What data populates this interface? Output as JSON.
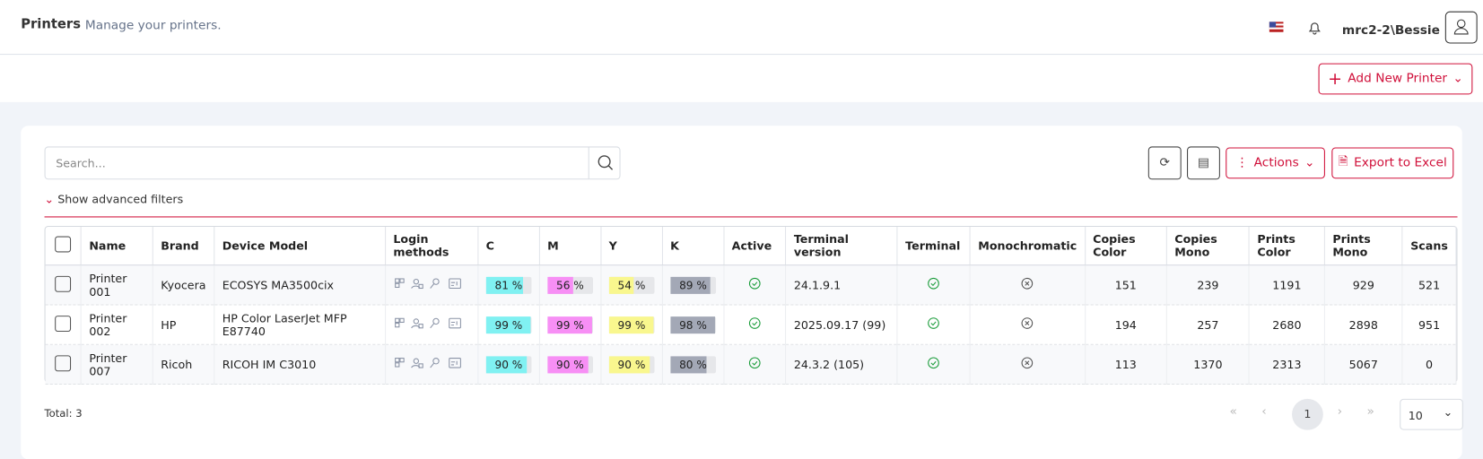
{
  "header": {
    "title": "Printers",
    "subtitle": "Manage your printers.",
    "user": "mrc2-2\\Bessie"
  },
  "toolbar": {
    "add_button": "Add New Printer",
    "search_placeholder": "Search...",
    "actions": "Actions",
    "export": "Export to Excel",
    "advanced_filters": "Show advanced filters"
  },
  "table": {
    "columns": [
      "Name",
      "Brand",
      "Device Model",
      "Login methods",
      "C",
      "M",
      "Y",
      "K",
      "Active",
      "Terminal version",
      "Terminal",
      "Monochromatic",
      "Copies Color",
      "Copies Mono",
      "Prints Color",
      "Prints Mono",
      "Scans"
    ],
    "toner_colors": {
      "c": "#80f1f2",
      "m": "#f78ff5",
      "y": "#f9f78e",
      "k": "#a3a8b6"
    },
    "rows": [
      {
        "name": "Printer 001",
        "brand": "Kyocera",
        "model": "ECOSYS MA3500cix",
        "c": {
          "value": 81,
          "label": "81 %"
        },
        "m": {
          "value": 56,
          "label": "56 %"
        },
        "y": {
          "value": 54,
          "label": "54 %"
        },
        "k": {
          "value": 89,
          "label": "89 %"
        },
        "active": true,
        "terminal_version": "24.1.9.1",
        "terminal": true,
        "monochromatic": false,
        "copies_color": 151,
        "copies_mono": 239,
        "prints_color": 1191,
        "prints_mono": 929,
        "scans": 521
      },
      {
        "name": "Printer 002",
        "brand": "HP",
        "model": "HP Color LaserJet MFP E87740",
        "c": {
          "value": 99,
          "label": "99 %"
        },
        "m": {
          "value": 99,
          "label": "99 %"
        },
        "y": {
          "value": 99,
          "label": "99 %"
        },
        "k": {
          "value": 98,
          "label": "98 %"
        },
        "active": true,
        "terminal_version": "2025.09.17 (99)",
        "terminal": true,
        "monochromatic": false,
        "copies_color": 194,
        "copies_mono": 257,
        "prints_color": 2680,
        "prints_mono": 2898,
        "scans": 951
      },
      {
        "name": "Printer 007",
        "brand": "Ricoh",
        "model": "RICOH IM C3010",
        "c": {
          "value": 90,
          "label": "90 %"
        },
        "m": {
          "value": 90,
          "label": "90 %"
        },
        "y": {
          "value": 90,
          "label": "90 %"
        },
        "k": {
          "value": 80,
          "label": "80 %"
        },
        "active": true,
        "terminal_version": "24.3.2 (105)",
        "terminal": true,
        "monochromatic": false,
        "copies_color": 113,
        "copies_mono": 1370,
        "prints_color": 2313,
        "prints_mono": 5067,
        "scans": 0
      }
    ]
  },
  "footer": {
    "total": "Total: 3",
    "page": 1,
    "page_size": 10
  }
}
